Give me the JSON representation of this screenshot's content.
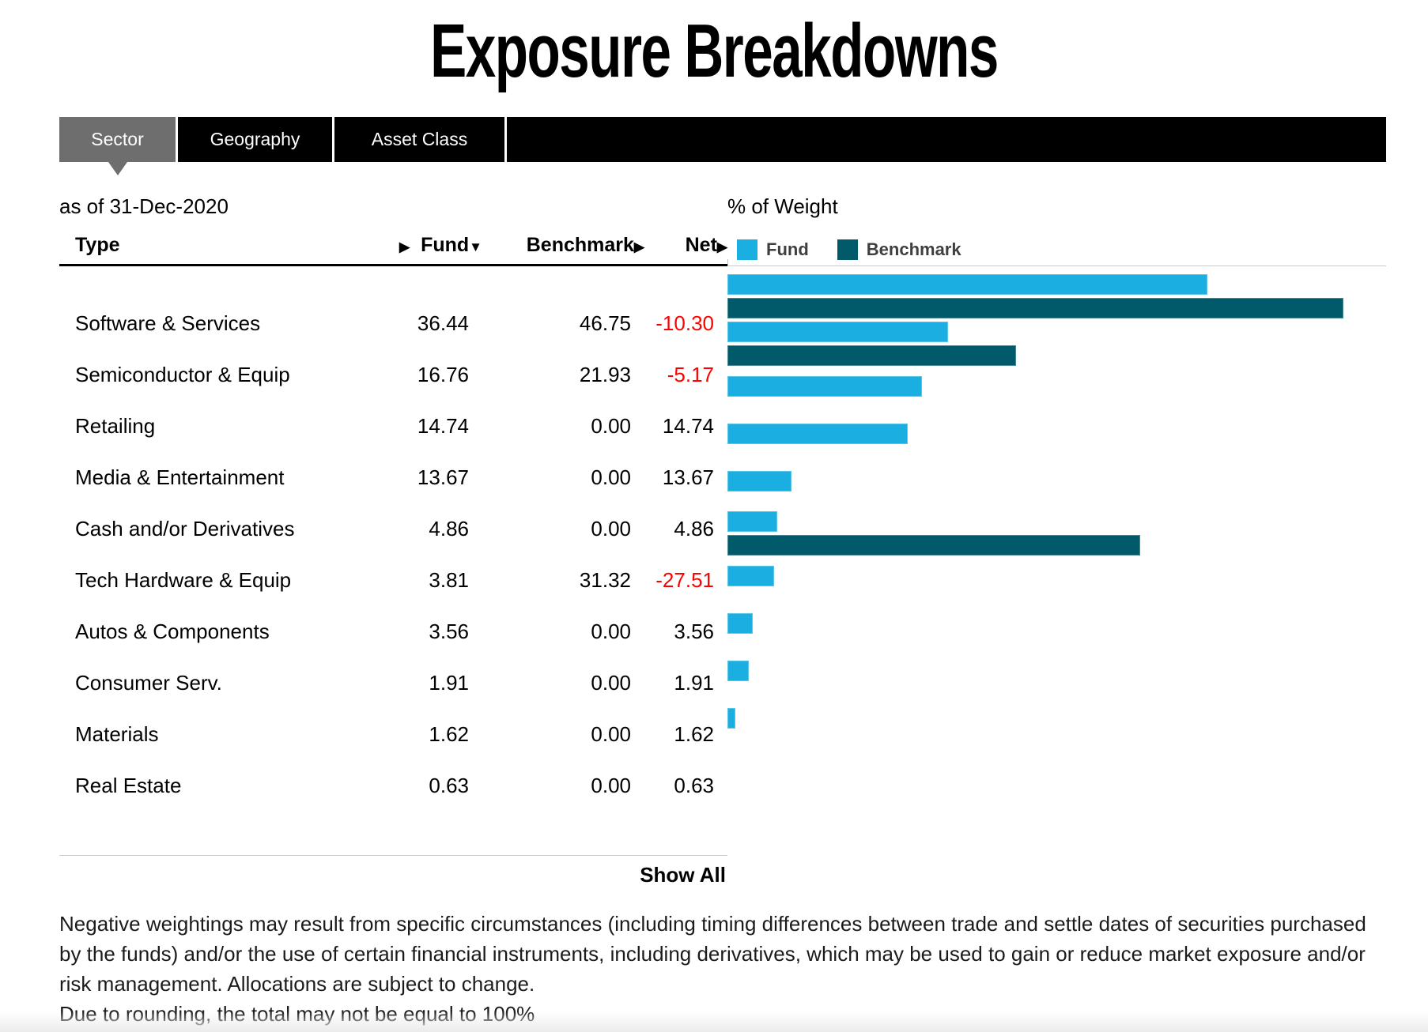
{
  "title": "Exposure Breakdowns",
  "tabs": [
    {
      "label": "Sector",
      "active": true
    },
    {
      "label": "Geography",
      "active": false
    },
    {
      "label": "Asset Class",
      "active": false
    }
  ],
  "as_of": "as of 31-Dec-2020",
  "axis_title": "% of Weight",
  "legend": {
    "fund": "Fund",
    "benchmark": "Benchmark"
  },
  "table": {
    "headers": {
      "type": "Type",
      "fund": "Fund",
      "benchmark": "Benchmark",
      "net": "Net"
    },
    "sort_icons": {
      "right": "▶",
      "down": "▼"
    },
    "rows": [
      {
        "type": "Software & Services",
        "fund": "36.44",
        "benchmark": "46.75",
        "net": "-10.30"
      },
      {
        "type": "Semiconductor & Equip",
        "fund": "16.76",
        "benchmark": "21.93",
        "net": "-5.17"
      },
      {
        "type": "Retailing",
        "fund": "14.74",
        "benchmark": "0.00",
        "net": "14.74"
      },
      {
        "type": "Media & Entertainment",
        "fund": "13.67",
        "benchmark": "0.00",
        "net": "13.67"
      },
      {
        "type": "Cash and/or Derivatives",
        "fund": "4.86",
        "benchmark": "0.00",
        "net": "4.86"
      },
      {
        "type": "Tech Hardware & Equip",
        "fund": "3.81",
        "benchmark": "31.32",
        "net": "-27.51"
      },
      {
        "type": "Autos & Components",
        "fund": "3.56",
        "benchmark": "0.00",
        "net": "3.56"
      },
      {
        "type": "Consumer Serv.",
        "fund": "1.91",
        "benchmark": "0.00",
        "net": "1.91"
      },
      {
        "type": "Materials",
        "fund": "1.62",
        "benchmark": "0.00",
        "net": "1.62"
      },
      {
        "type": "Real Estate",
        "fund": "0.63",
        "benchmark": "0.00",
        "net": "0.63"
      }
    ]
  },
  "show_all_label": "Show All",
  "footnote_lines": [
    "Negative weightings may result from specific circumstances (including timing differences between trade and settle dates of securities purchased",
    "by the funds) and/or the use of certain financial instruments, including derivatives, which may be used to gain or reduce market exposure and/or",
    "risk management. Allocations are subject to change.",
    "Due to rounding, the total may not be equal to 100%"
  ],
  "colors": {
    "fund": "#1BAEE1",
    "benchmark": "#005A69",
    "negative": "#FF0000",
    "tab_active_bg": "#6E6E6E",
    "tab_bar_bg": "#000000"
  },
  "chart_data": {
    "type": "bar",
    "orientation": "horizontal",
    "title": "% of Weight",
    "categories": [
      "Software & Services",
      "Semiconductor & Equip",
      "Retailing",
      "Media & Entertainment",
      "Cash and/or Derivatives",
      "Tech Hardware & Equip",
      "Autos & Components",
      "Consumer Serv.",
      "Materials",
      "Real Estate"
    ],
    "series": [
      {
        "name": "Fund",
        "color": "#1BAEE1",
        "values": [
          36.44,
          16.76,
          14.74,
          13.67,
          4.86,
          3.81,
          3.56,
          1.91,
          1.62,
          0.63
        ]
      },
      {
        "name": "Benchmark",
        "color": "#005A69",
        "values": [
          46.75,
          21.93,
          0.0,
          0.0,
          0.0,
          31.32,
          0.0,
          0.0,
          0.0,
          0.0
        ]
      }
    ],
    "net": [
      -10.3,
      -5.17,
      14.74,
      13.67,
      4.86,
      -27.51,
      3.56,
      1.91,
      1.62,
      0.63
    ],
    "xlim": [
      0,
      50
    ],
    "grid": false,
    "legend_position": "top"
  }
}
